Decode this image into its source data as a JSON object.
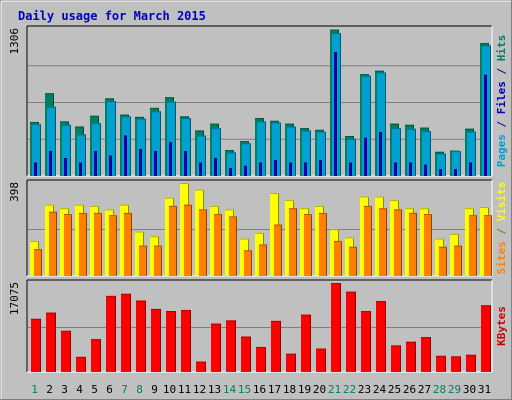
{
  "chart_data": {
    "type": "bar",
    "title": "Daily usage for March 2015",
    "categories": [
      "1",
      "2",
      "3",
      "4",
      "5",
      "6",
      "7",
      "8",
      "9",
      "10",
      "11",
      "12",
      "13",
      "14",
      "15",
      "16",
      "17",
      "18",
      "19",
      "20",
      "21",
      "22",
      "23",
      "24",
      "25",
      "26",
      "27",
      "28",
      "29",
      "30",
      "31"
    ],
    "weekend_days": [
      "1",
      "7",
      "8",
      "14",
      "15",
      "21",
      "22",
      "28",
      "29"
    ],
    "panels": [
      {
        "id": "hits",
        "ymax": 1306,
        "ymax_label": "1306",
        "right_label_parts": [
          {
            "text": "Pages",
            "color": "#00a0d0"
          },
          {
            "text": " / ",
            "color": "#0a0a80"
          },
          {
            "text": "Files",
            "color": "#0000c0"
          },
          {
            "text": " / ",
            "color": "#0a0a80"
          },
          {
            "text": "Hits",
            "color": "#008060"
          }
        ],
        "series": [
          {
            "name": "Hits",
            "color": "#008060",
            "values": [
              480,
              735,
              485,
              440,
              535,
              690,
              545,
              525,
              605,
              700,
              530,
              405,
              465,
              230,
              310,
              515,
              490,
              465,
              425,
              410,
              1300,
              355,
              905,
              935,
              465,
              455,
              430,
              215,
              225,
              420,
              1180
            ]
          },
          {
            "name": "Files",
            "color": "#00a0d0",
            "values": [
              460,
              615,
              455,
              370,
              470,
              665,
              530,
              510,
              575,
              660,
              515,
              360,
              425,
              210,
              290,
              485,
              475,
              440,
              405,
              395,
              1270,
              330,
              890,
              920,
              425,
              420,
              400,
              200,
              220,
              395,
              1160
            ]
          },
          {
            "name": "Pages",
            "color": "#0000c0",
            "values": [
              120,
              220,
              160,
              120,
              220,
              180,
              360,
              240,
              220,
              300,
              220,
              120,
              160,
              70,
              90,
              120,
              140,
              120,
              120,
              140,
              1100,
              120,
              340,
              390,
              120,
              120,
              100,
              60,
              60,
              120,
              900
            ]
          }
        ]
      },
      {
        "id": "visits",
        "ymax": 398,
        "ymax_label": "398",
        "right_label_parts": [
          {
            "text": "Sites",
            "color": "#ff8000"
          },
          {
            "text": " / ",
            "color": "#808000"
          },
          {
            "text": "Visits",
            "color": "#ffff00"
          }
        ],
        "series": [
          {
            "name": "Visits",
            "color": "#ffff00",
            "values": [
              150,
              305,
              290,
              305,
              300,
              285,
              305,
              190,
              170,
              335,
              398,
              370,
              300,
              285,
              160,
              185,
              355,
              325,
              290,
              300,
              200,
              165,
              340,
              340,
              325,
              290,
              290,
              160,
              180,
              290,
              295
            ]
          },
          {
            "name": "Sites",
            "color": "#ff8000",
            "values": [
              115,
              275,
              265,
              270,
              270,
              260,
              270,
              130,
              130,
              300,
              305,
              285,
              265,
              255,
              110,
              135,
              220,
              290,
              265,
              270,
              150,
              125,
              300,
              290,
              285,
              270,
              265,
              125,
              130,
              260,
              260
            ]
          }
        ]
      },
      {
        "id": "kbytes",
        "ymax": 17075,
        "ymax_label": "17075",
        "right_label_parts": [
          {
            "text": "KBytes",
            "color": "#d00000"
          }
        ],
        "series": [
          {
            "name": "KBytes",
            "color": "#ff0000",
            "values": [
              10200,
              11400,
              7900,
              2900,
              6300,
              14600,
              15000,
              13700,
              12100,
              11700,
              11900,
              2000,
              9300,
              9900,
              6800,
              4800,
              9800,
              3500,
              11000,
              4500,
              17075,
              15400,
              11700,
              13600,
              5100,
              5800,
              6700,
              3100,
              3000,
              3300,
              12800
            ]
          }
        ]
      }
    ]
  }
}
